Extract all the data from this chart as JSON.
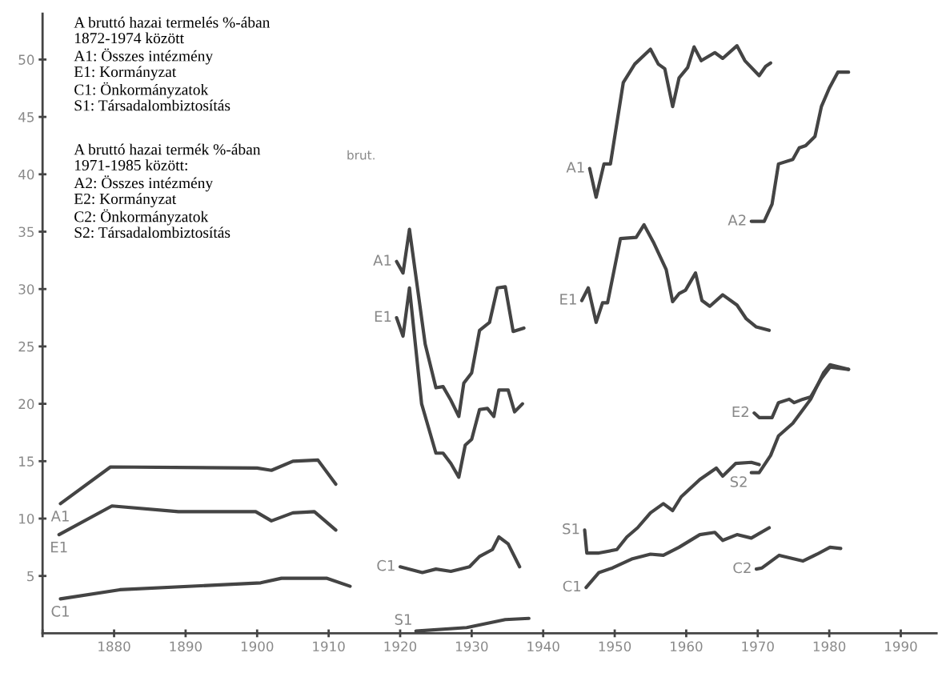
{
  "chart_data": {
    "type": "line",
    "xlim": [
      1870,
      1995
    ],
    "ylim": [
      0,
      54
    ],
    "xticks": [
      {
        "value": 1870,
        "label": null
      },
      1880,
      1890,
      1900,
      1910,
      1920,
      1930,
      1940,
      1950,
      1960,
      1970,
      1980,
      1990
    ],
    "yticks": [
      5,
      10,
      15,
      20,
      25,
      30,
      35,
      40,
      45,
      50
    ],
    "grid": false,
    "legend": false,
    "marker": "none",
    "line_style": "solid",
    "annotations": [
      "A bruttó hazai termelés %-ában\n1872-1974 között\nA1: Összes intézmény\nE1: Kormányzat\nC1: Önkormányzatok\nS1: Társadalombiztosítás",
      "A bruttó hazai termék %-ában\n1971-1985 között:\nA2: Összes intézmény\nE2: Kormányzat\nC2: Önkormányzatok\nS2: Társadalombiztosítás",
      "brut."
    ],
    "series": [
      {
        "name": "A1",
        "color": "#444444",
        "x": [
          1872.5,
          1879.5,
          1900,
          1902,
          1905,
          1908.5,
          1911
        ],
        "values": [
          11.3,
          14.5,
          14.4,
          14.2,
          15.0,
          15.1,
          13.0
        ]
      },
      {
        "name": "E1",
        "color": "#444444",
        "x": [
          1872.3,
          1879.7,
          1889,
          1899.8,
          1902,
          1905,
          1908,
          1911
        ],
        "values": [
          8.6,
          11.1,
          10.6,
          10.6,
          9.8,
          10.5,
          10.6,
          9.0
        ]
      },
      {
        "name": "C1",
        "color": "#444444",
        "x": [
          1872.5,
          1880.8,
          1900.5,
          1903.4,
          1909.7,
          1913
        ],
        "values": [
          3.0,
          3.8,
          4.4,
          4.8,
          4.8,
          4.1
        ]
      },
      {
        "name": "A1",
        "color": "#444444",
        "x": [
          1919.5,
          1920.4,
          1921.3,
          1923.5,
          1925,
          1926,
          1927.1,
          1928.2,
          1928.9,
          1930,
          1931.1,
          1932.5,
          1933.6,
          1934.7,
          1935.8,
          1937.3
        ],
        "values": [
          32.4,
          31.4,
          35.2,
          25.2,
          21.4,
          21.5,
          20.3,
          18.9,
          21.8,
          22.7,
          26.4,
          27.1,
          30.1,
          30.2,
          26.3,
          26.6
        ]
      },
      {
        "name": "E1",
        "color": "#444444",
        "x": [
          1919.5,
          1920.4,
          1921.3,
          1923,
          1925,
          1926,
          1927.1,
          1928.2,
          1929.1,
          1930,
          1931.1,
          1932.2,
          1933.1,
          1933.8,
          1935.1,
          1936,
          1937.1
        ],
        "values": [
          27.5,
          25.9,
          30.1,
          20.0,
          15.7,
          15.7,
          14.8,
          13.6,
          16.4,
          16.9,
          19.5,
          19.6,
          18.9,
          21.2,
          21.2,
          19.3,
          20.0
        ]
      },
      {
        "name": "C1",
        "color": "#444444",
        "x": [
          1920,
          1923.1,
          1925,
          1927.1,
          1929.7,
          1931.1,
          1932.9,
          1933.8,
          1935.1,
          1936.7
        ],
        "values": [
          5.8,
          5.3,
          5.6,
          5.4,
          5.8,
          6.7,
          7.3,
          8.4,
          7.8,
          5.8
        ]
      },
      {
        "name": "S1",
        "color": "#444444",
        "x": [
          1922.2,
          1929.3,
          1934.7,
          1938
        ],
        "values": [
          0.2,
          0.5,
          1.2,
          1.3
        ]
      },
      {
        "name": "A1",
        "color": "#444444",
        "x": [
          1946.5,
          1947.4,
          1948.5,
          1949.4,
          1951.2,
          1952.8,
          1955,
          1956.1,
          1957,
          1958.1,
          1959,
          1960.2,
          1961.1,
          1962.1,
          1964,
          1965.1,
          1967.1,
          1968.2,
          1970.2,
          1971.1,
          1971.8
        ],
        "values": [
          40.5,
          38.0,
          40.9,
          40.9,
          48.0,
          49.6,
          50.9,
          49.6,
          49.2,
          45.9,
          48.4,
          49.3,
          51.1,
          49.9,
          50.6,
          50.1,
          51.2,
          49.9,
          48.6,
          49.4,
          49.7
        ]
      },
      {
        "name": "E1",
        "color": "#444444",
        "x": [
          1945.4,
          1946.3,
          1947.4,
          1948.3,
          1949,
          1950.8,
          1953,
          1954.1,
          1955.4,
          1957.2,
          1958.1,
          1959,
          1959.9,
          1961.3,
          1962.2,
          1963.3,
          1965.1,
          1967.1,
          1968.4,
          1969.8,
          1971.6
        ],
        "values": [
          29.0,
          30.1,
          27.1,
          28.8,
          28.8,
          34.4,
          34.5,
          35.6,
          34.1,
          31.7,
          28.9,
          29.6,
          29.9,
          31.4,
          29.0,
          28.5,
          29.5,
          28.6,
          27.4,
          26.7,
          26.4
        ]
      },
      {
        "name": "S1",
        "color": "#444444",
        "x": [
          1945.8,
          1946.1,
          1947.8,
          1950.3,
          1951.7,
          1953.2,
          1955,
          1956.8,
          1958.1,
          1959.3,
          1961.9,
          1964.2,
          1965.1,
          1966.9,
          1969.1,
          1970.2
        ],
        "values": [
          9.0,
          7.0,
          7.0,
          7.3,
          8.4,
          9.2,
          10.5,
          11.3,
          10.7,
          11.9,
          13.4,
          14.4,
          13.7,
          14.8,
          14.9,
          14.7
        ]
      },
      {
        "name": "C1",
        "color": "#444444",
        "x": [
          1946,
          1947.8,
          1949.7,
          1952.5,
          1955,
          1956.8,
          1959,
          1961.9,
          1964,
          1965.1,
          1967.1,
          1969.1,
          1971.6
        ],
        "values": [
          4.0,
          5.3,
          5.7,
          6.5,
          6.9,
          6.8,
          7.5,
          8.6,
          8.8,
          8.1,
          8.6,
          8.3,
          9.2
        ]
      },
      {
        "name": "A2",
        "color": "#444444",
        "x": [
          1969.1,
          1970.9,
          1972,
          1972.9,
          1974.9,
          1975.8,
          1976.7,
          1978,
          1978.9,
          1980,
          1981.2,
          1982.7
        ],
        "values": [
          35.9,
          35.9,
          37.4,
          40.9,
          41.3,
          42.3,
          42.5,
          43.3,
          45.9,
          47.5,
          48.9,
          48.9
        ]
      },
      {
        "name": "E2",
        "color": "#444444",
        "x": [
          1969.5,
          1970.2,
          1972,
          1972.9,
          1974.4,
          1975.1,
          1976.3,
          1977.4,
          1978.9,
          1980.1,
          1982.7
        ],
        "values": [
          19.2,
          18.8,
          18.8,
          20.1,
          20.4,
          20.1,
          20.4,
          20.6,
          22.2,
          23.2,
          23.0
        ]
      },
      {
        "name": "S2",
        "color": "#444444",
        "x": [
          1969.1,
          1970.2,
          1971.8,
          1972.9,
          1974.9,
          1977.4,
          1979.2,
          1980.1,
          1982.7
        ],
        "values": [
          14.0,
          14.0,
          15.5,
          17.2,
          18.3,
          20.4,
          22.7,
          23.4,
          23.0
        ]
      },
      {
        "name": "C2",
        "color": "#444444",
        "x": [
          1969.8,
          1970.6,
          1973,
          1976.3,
          1978.3,
          1980.1,
          1981.6
        ],
        "values": [
          5.6,
          5.7,
          6.8,
          6.3,
          6.9,
          7.5,
          7.4
        ]
      }
    ]
  }
}
